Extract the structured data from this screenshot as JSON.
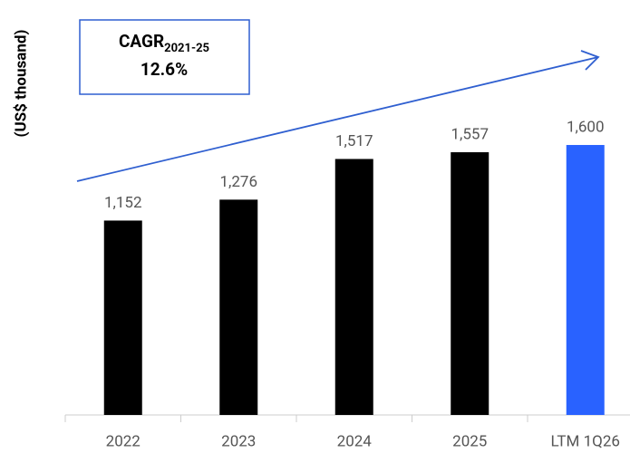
{
  "chart_data": {
    "type": "bar",
    "y_label": "(US$ thousand)",
    "categories": [
      "2022",
      "2023",
      "2024",
      "2025",
      "LTM 1Q26"
    ],
    "values": [
      1152,
      1276,
      1517,
      1557,
      1600
    ],
    "value_labels": [
      "1,152",
      "1,276",
      "1,517",
      "1,557",
      "1,600"
    ],
    "colors": [
      "#000000",
      "#000000",
      "#000000",
      "#000000",
      "#2962ff"
    ],
    "ylim": [
      0,
      1700
    ],
    "annotation": {
      "label": "CAGR",
      "period": "2021-25",
      "value": "12.6%",
      "color": "#2f5fd0"
    }
  }
}
